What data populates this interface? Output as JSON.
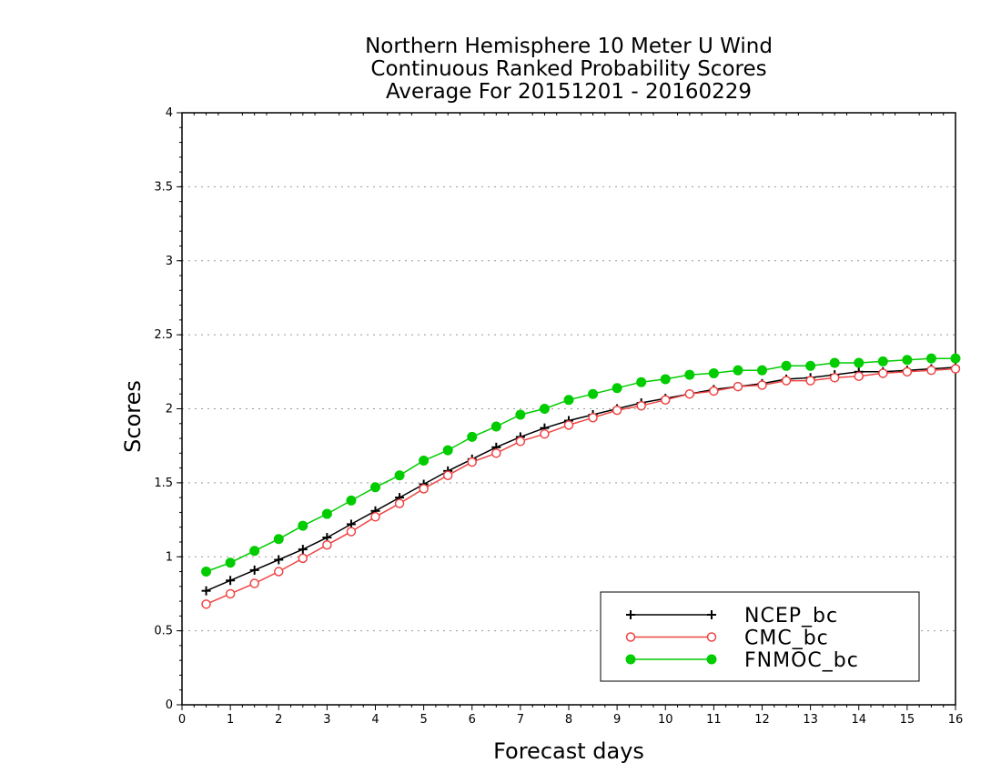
{
  "chart_data": {
    "type": "line",
    "title_lines": [
      "Northern Hemisphere 10 Meter U Wind",
      "Continuous Ranked Probability Scores",
      "Average For 20151201 - 20160229"
    ],
    "xlabel": "Forecast days",
    "ylabel": "Scores",
    "xlim": [
      0,
      16
    ],
    "ylim": [
      0,
      4
    ],
    "x_ticks": [
      "0",
      "1",
      "2",
      "3",
      "4",
      "5",
      "6",
      "7",
      "8",
      "9",
      "10",
      "11",
      "12",
      "13",
      "14",
      "15",
      "16"
    ],
    "y_ticks": [
      "0",
      "0.5",
      "1",
      "1.5",
      "2",
      "2.5",
      "3",
      "3.5",
      "4"
    ],
    "grid": "horizontal dotted",
    "legend_position": "bottom-right",
    "x": [
      0.5,
      1,
      1.5,
      2,
      2.5,
      3,
      3.5,
      4,
      4.5,
      5,
      5.5,
      6,
      6.5,
      7,
      7.5,
      8,
      8.5,
      9,
      9.5,
      10,
      10.5,
      11,
      11.5,
      12,
      12.5,
      13,
      13.5,
      14,
      14.5,
      15,
      15.5,
      16
    ],
    "series": [
      {
        "name": "NCEP_bc",
        "color": "#000000",
        "marker": "plus",
        "values": [
          0.77,
          0.84,
          0.91,
          0.98,
          1.05,
          1.13,
          1.22,
          1.31,
          1.4,
          1.49,
          1.58,
          1.66,
          1.74,
          1.81,
          1.87,
          1.92,
          1.96,
          2.0,
          2.04,
          2.07,
          2.1,
          2.13,
          2.15,
          2.17,
          2.2,
          2.21,
          2.23,
          2.25,
          2.25,
          2.26,
          2.27,
          2.28
        ]
      },
      {
        "name": "CMC_bc",
        "color": "#ee4444",
        "marker": "open-circle",
        "values": [
          0.68,
          0.75,
          0.82,
          0.9,
          0.99,
          1.08,
          1.17,
          1.27,
          1.36,
          1.46,
          1.55,
          1.64,
          1.7,
          1.78,
          1.83,
          1.89,
          1.94,
          1.99,
          2.02,
          2.06,
          2.1,
          2.12,
          2.15,
          2.16,
          2.19,
          2.19,
          2.21,
          2.22,
          2.24,
          2.25,
          2.26,
          2.27
        ]
      },
      {
        "name": "FNMOC_bc",
        "color": "#00cc00",
        "marker": "filled-circle",
        "values": [
          0.9,
          0.96,
          1.04,
          1.12,
          1.21,
          1.29,
          1.38,
          1.47,
          1.55,
          1.65,
          1.72,
          1.81,
          1.88,
          1.96,
          2.0,
          2.06,
          2.1,
          2.14,
          2.18,
          2.2,
          2.23,
          2.24,
          2.26,
          2.26,
          2.29,
          2.29,
          2.31,
          2.31,
          2.32,
          2.33,
          2.34,
          2.34
        ]
      }
    ]
  }
}
